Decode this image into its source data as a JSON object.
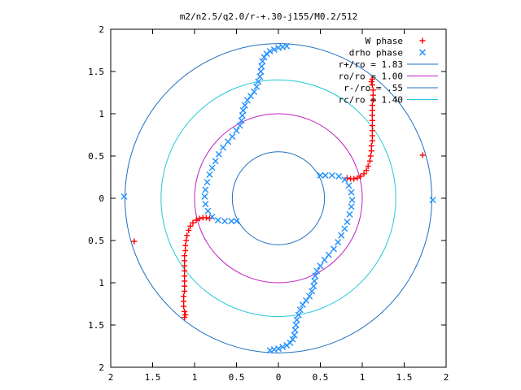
{
  "chart_data": {
    "type": "scatter",
    "title": "m2/n2.5/q2.0/r-+.30-j155/M0.2/512",
    "xlim": [
      -2,
      2
    ],
    "ylim": [
      -2,
      2
    ],
    "aspect": "equal",
    "grid": false,
    "legend_position": "top-right",
    "x_ticks": [
      {
        "value": -2,
        "label": "2"
      },
      {
        "value": -1.5,
        "label": "1.5"
      },
      {
        "value": -1,
        "label": "1"
      },
      {
        "value": -0.5,
        "label": "0.5"
      },
      {
        "value": 0,
        "label": "0"
      },
      {
        "value": 0.5,
        "label": "0.5"
      },
      {
        "value": 1,
        "label": "1"
      },
      {
        "value": 1.5,
        "label": "1.5"
      },
      {
        "value": 2,
        "label": "2"
      }
    ],
    "y_ticks": [
      {
        "value": 2,
        "label": "2"
      },
      {
        "value": 1.5,
        "label": "1.5"
      },
      {
        "value": 1,
        "label": "1"
      },
      {
        "value": 0.5,
        "label": "0.5"
      },
      {
        "value": 0,
        "label": "0"
      },
      {
        "value": -0.5,
        "label": "0.5"
      },
      {
        "value": -1,
        "label": "1"
      },
      {
        "value": -1.5,
        "label": "1.5"
      },
      {
        "value": -2,
        "label": "2"
      }
    ],
    "circles": [
      {
        "name": "r+/ro = 1.83",
        "radius": 1.83,
        "color": "#1f6fbf"
      },
      {
        "name": "ro/ro = 1.00",
        "radius": 1.0,
        "color": "#c020c0"
      },
      {
        "name": "r-/ro = .55",
        "radius": 0.55,
        "color": "#1f6fbf"
      },
      {
        "name": "rc/ro = 1.40",
        "radius": 1.4,
        "color": "#22c8d8"
      }
    ],
    "series": [
      {
        "name": "W phase",
        "marker": "plus",
        "color": "#ff0000",
        "points": [
          [
            0.82,
            0.24
          ],
          [
            0.86,
            0.23
          ],
          [
            0.9,
            0.23
          ],
          [
            0.94,
            0.24
          ],
          [
            0.98,
            0.26
          ],
          [
            1.02,
            0.29
          ],
          [
            1.05,
            0.33
          ],
          [
            1.07,
            0.38
          ],
          [
            1.09,
            0.44
          ],
          [
            1.1,
            0.5
          ],
          [
            1.11,
            0.56
          ],
          [
            1.11,
            0.62
          ],
          [
            1.12,
            0.68
          ],
          [
            1.12,
            0.74
          ],
          [
            1.12,
            0.8
          ],
          [
            1.12,
            0.86
          ],
          [
            1.12,
            0.92
          ],
          [
            1.12,
            0.98
          ],
          [
            1.12,
            1.04
          ],
          [
            1.12,
            1.1
          ],
          [
            1.13,
            1.16
          ],
          [
            1.13,
            1.22
          ],
          [
            1.13,
            1.28
          ],
          [
            1.12,
            1.34
          ],
          [
            1.11,
            1.38
          ],
          [
            1.12,
            1.41
          ],
          [
            1.72,
            0.51
          ],
          [
            -0.82,
            -0.24
          ],
          [
            -0.86,
            -0.23
          ],
          [
            -0.9,
            -0.23
          ],
          [
            -0.94,
            -0.24
          ],
          [
            -0.98,
            -0.26
          ],
          [
            -1.02,
            -0.29
          ],
          [
            -1.05,
            -0.33
          ],
          [
            -1.07,
            -0.38
          ],
          [
            -1.09,
            -0.44
          ],
          [
            -1.1,
            -0.5
          ],
          [
            -1.11,
            -0.56
          ],
          [
            -1.11,
            -0.62
          ],
          [
            -1.12,
            -0.68
          ],
          [
            -1.12,
            -0.74
          ],
          [
            -1.12,
            -0.8
          ],
          [
            -1.12,
            -0.86
          ],
          [
            -1.12,
            -0.92
          ],
          [
            -1.12,
            -0.98
          ],
          [
            -1.12,
            -1.04
          ],
          [
            -1.12,
            -1.1
          ],
          [
            -1.13,
            -1.16
          ],
          [
            -1.13,
            -1.22
          ],
          [
            -1.13,
            -1.28
          ],
          [
            -1.12,
            -1.34
          ],
          [
            -1.11,
            -1.38
          ],
          [
            -1.12,
            -1.41
          ],
          [
            -1.72,
            -0.51
          ]
        ]
      },
      {
        "name": "drho phase",
        "marker": "cross",
        "color": "#1f8fff",
        "points": [
          [
            0.1,
            1.8
          ],
          [
            0.05,
            1.79
          ],
          [
            0.0,
            1.78
          ],
          [
            -0.05,
            1.76
          ],
          [
            -0.1,
            1.74
          ],
          [
            -0.14,
            1.71
          ],
          [
            -0.17,
            1.67
          ],
          [
            -0.19,
            1.62
          ],
          [
            -0.2,
            1.56
          ],
          [
            -0.21,
            1.5
          ],
          [
            -0.22,
            1.44
          ],
          [
            -0.24,
            1.38
          ],
          [
            -0.26,
            1.32
          ],
          [
            -0.29,
            1.26
          ],
          [
            -0.33,
            1.21
          ],
          [
            -0.37,
            1.16
          ],
          [
            -0.4,
            1.1
          ],
          [
            -0.42,
            1.04
          ],
          [
            -0.43,
            0.98
          ],
          [
            -0.44,
            0.92
          ],
          [
            -0.46,
            0.86
          ],
          [
            -0.5,
            0.8
          ],
          [
            -0.55,
            0.73
          ],
          [
            -0.6,
            0.67
          ],
          [
            -0.66,
            0.6
          ],
          [
            -0.71,
            0.52
          ],
          [
            -0.75,
            0.44
          ],
          [
            -0.79,
            0.36
          ],
          [
            -0.82,
            0.28
          ],
          [
            -0.85,
            0.19
          ],
          [
            -0.87,
            0.1
          ],
          [
            -0.88,
            0.02
          ],
          [
            -0.87,
            -0.07
          ],
          [
            -0.84,
            -0.15
          ],
          [
            -0.79,
            -0.22
          ],
          [
            -0.72,
            -0.26
          ],
          [
            -0.64,
            -0.27
          ],
          [
            -0.56,
            -0.27
          ],
          [
            -0.5,
            -0.27
          ],
          [
            -1.84,
            0.02
          ],
          [
            -0.1,
            -1.8
          ],
          [
            -0.05,
            -1.79
          ],
          [
            0.0,
            -1.78
          ],
          [
            0.05,
            -1.76
          ],
          [
            0.1,
            -1.74
          ],
          [
            0.14,
            -1.71
          ],
          [
            0.17,
            -1.67
          ],
          [
            0.19,
            -1.62
          ],
          [
            0.2,
            -1.56
          ],
          [
            0.21,
            -1.5
          ],
          [
            0.22,
            -1.44
          ],
          [
            0.24,
            -1.38
          ],
          [
            0.26,
            -1.32
          ],
          [
            0.29,
            -1.26
          ],
          [
            0.33,
            -1.21
          ],
          [
            0.37,
            -1.16
          ],
          [
            0.4,
            -1.1
          ],
          [
            0.42,
            -1.04
          ],
          [
            0.43,
            -0.98
          ],
          [
            0.44,
            -0.92
          ],
          [
            0.46,
            -0.86
          ],
          [
            0.5,
            -0.8
          ],
          [
            0.55,
            -0.73
          ],
          [
            0.6,
            -0.67
          ],
          [
            0.66,
            -0.6
          ],
          [
            0.71,
            -0.52
          ],
          [
            0.75,
            -0.44
          ],
          [
            0.79,
            -0.36
          ],
          [
            0.82,
            -0.28
          ],
          [
            0.85,
            -0.19
          ],
          [
            0.87,
            -0.1
          ],
          [
            0.88,
            -0.02
          ],
          [
            0.87,
            0.07
          ],
          [
            0.84,
            0.15
          ],
          [
            0.79,
            0.22
          ],
          [
            0.72,
            0.26
          ],
          [
            0.64,
            0.27
          ],
          [
            0.56,
            0.27
          ],
          [
            0.5,
            0.27
          ],
          [
            1.84,
            -0.02
          ]
        ]
      }
    ]
  }
}
